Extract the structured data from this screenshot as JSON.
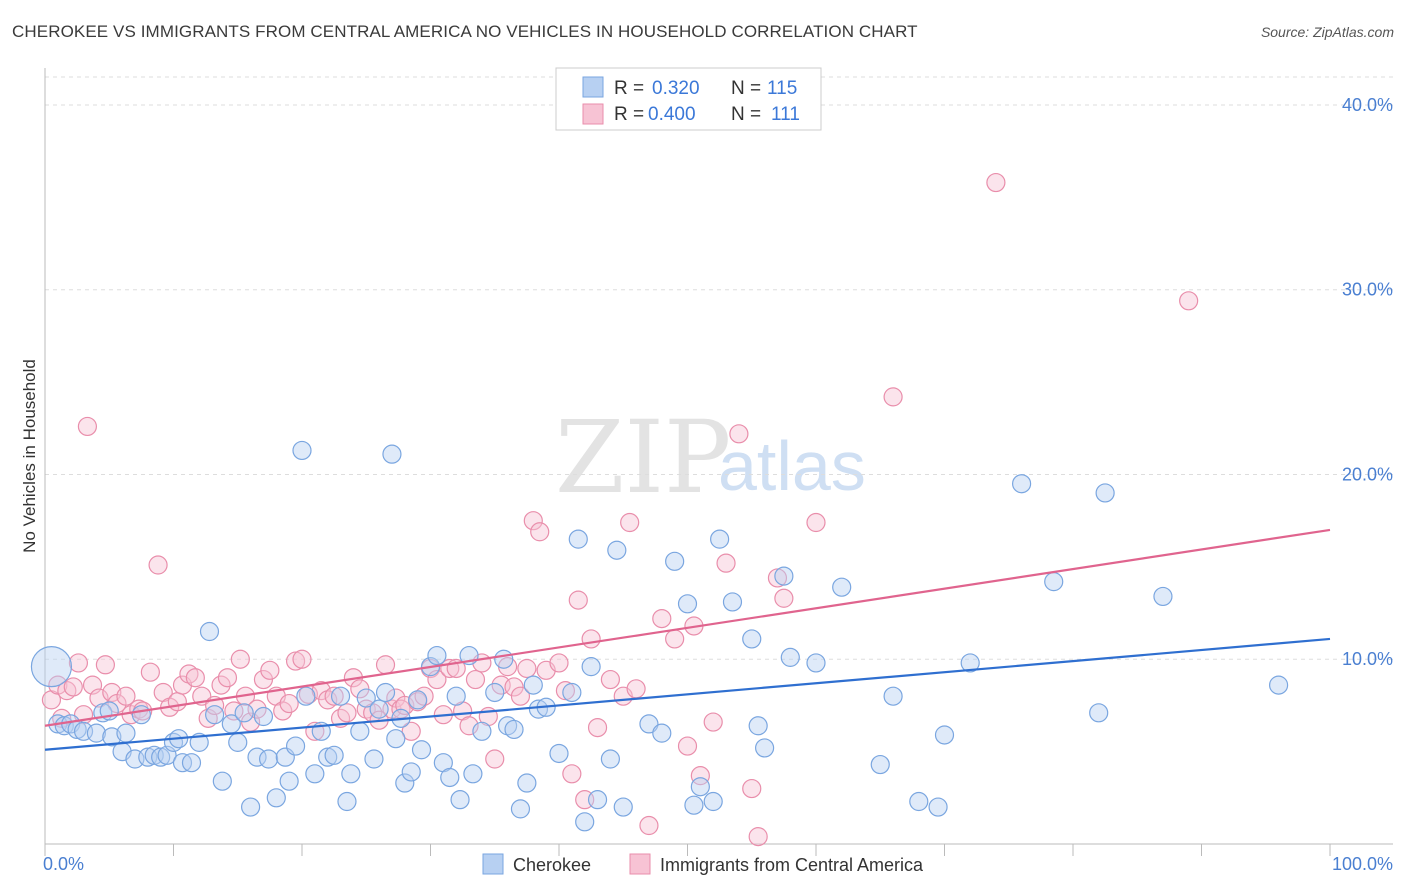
{
  "title": "CHEROKEE VS IMMIGRANTS FROM CENTRAL AMERICA NO VEHICLES IN HOUSEHOLD CORRELATION CHART",
  "source": "Source: ZipAtlas.com",
  "watermark": {
    "zip": "ZIP",
    "atlas": "atlas"
  },
  "colors": {
    "blue_fill": "#b7d0f2",
    "blue_stroke": "#7aa6e0",
    "blue_line": "#2f6fd0",
    "pink_fill": "#f7c3d4",
    "pink_stroke": "#e98eab",
    "pink_line": "#e0648e",
    "tick_text": "#4a7fd1",
    "grid": "#dddddd"
  },
  "legend": {
    "rows": [
      {
        "r_label": "R =",
        "r_value": "0.320",
        "n_label": "N =",
        "n_value": "115"
      },
      {
        "r_label": "R =",
        "r_value": "0.400",
        "n_label": "N =",
        "n_value": "111"
      }
    ]
  },
  "bottom_legend": [
    "Cherokee",
    "Immigrants from Central America"
  ],
  "chart_data": {
    "type": "scatter",
    "ylabel": "No Vehicles in Household",
    "xlabel": "",
    "xlim": [
      0,
      100
    ],
    "ylim": [
      0,
      42
    ],
    "x_tick_labels": [
      {
        "value": 0,
        "label": "0.0%"
      },
      {
        "value": 100,
        "label": "100.0%"
      }
    ],
    "y_tick_labels": [
      {
        "value": 10,
        "label": "10.0%"
      },
      {
        "value": 20,
        "label": "20.0%"
      },
      {
        "value": 30,
        "label": "30.0%"
      },
      {
        "value": 40,
        "label": "40.0%"
      }
    ],
    "series": [
      {
        "name": "Cherokee",
        "R": 0.32,
        "N": 115,
        "trend": {
          "x": [
            0,
            100
          ],
          "y": [
            5.1,
            11.1
          ]
        },
        "points": [
          [
            0.5,
            9.6
          ],
          [
            1,
            6.5
          ],
          [
            1.5,
            6.4
          ],
          [
            2,
            6.5
          ],
          [
            2.5,
            6.2
          ],
          [
            3,
            6.1
          ],
          [
            4,
            6.0
          ],
          [
            4.5,
            7.1
          ],
          [
            5,
            7.2
          ],
          [
            5.2,
            5.8
          ],
          [
            6,
            5.0
          ],
          [
            6.3,
            6.0
          ],
          [
            7,
            4.6
          ],
          [
            7.5,
            7.0
          ],
          [
            8,
            4.7
          ],
          [
            8.5,
            4.8
          ],
          [
            9,
            4.7
          ],
          [
            9.5,
            4.8
          ],
          [
            10,
            5.5
          ],
          [
            10.4,
            5.7
          ],
          [
            10.7,
            4.4
          ],
          [
            11.4,
            4.4
          ],
          [
            12,
            5.5
          ],
          [
            12.8,
            11.5
          ],
          [
            13.2,
            7.0
          ],
          [
            13.8,
            3.4
          ],
          [
            14.5,
            6.5
          ],
          [
            15,
            5.5
          ],
          [
            15.5,
            7.1
          ],
          [
            16,
            2.0
          ],
          [
            16.5,
            4.7
          ],
          [
            17,
            6.9
          ],
          [
            17.4,
            4.6
          ],
          [
            18,
            2.5
          ],
          [
            18.7,
            4.7
          ],
          [
            19,
            3.4
          ],
          [
            19.5,
            5.3
          ],
          [
            20,
            21.3
          ],
          [
            20.3,
            8.0
          ],
          [
            21,
            3.8
          ],
          [
            21.5,
            6.1
          ],
          [
            22,
            4.7
          ],
          [
            22.5,
            4.8
          ],
          [
            23,
            8.0
          ],
          [
            23.5,
            2.3
          ],
          [
            23.8,
            3.8
          ],
          [
            24.5,
            6.1
          ],
          [
            25,
            7.9
          ],
          [
            25.6,
            4.6
          ],
          [
            26,
            7.3
          ],
          [
            26.5,
            8.2
          ],
          [
            27,
            21.1
          ],
          [
            27.3,
            5.7
          ],
          [
            27.7,
            6.8
          ],
          [
            28,
            3.3
          ],
          [
            28.5,
            3.9
          ],
          [
            29,
            7.8
          ],
          [
            29.3,
            5.1
          ],
          [
            30,
            9.6
          ],
          [
            30.5,
            10.2
          ],
          [
            31,
            4.4
          ],
          [
            31.5,
            3.6
          ],
          [
            32,
            8.0
          ],
          [
            32.3,
            2.4
          ],
          [
            33,
            10.2
          ],
          [
            33.3,
            3.8
          ],
          [
            34,
            6.1
          ],
          [
            35,
            8.2
          ],
          [
            35.7,
            10.0
          ],
          [
            36,
            6.4
          ],
          [
            36.5,
            6.2
          ],
          [
            37,
            1.9
          ],
          [
            37.5,
            3.3
          ],
          [
            38,
            8.6
          ],
          [
            38.4,
            7.3
          ],
          [
            39,
            7.4
          ],
          [
            40,
            4.9
          ],
          [
            41,
            8.2
          ],
          [
            41.5,
            16.5
          ],
          [
            42,
            1.2
          ],
          [
            42.5,
            9.6
          ],
          [
            43,
            2.4
          ],
          [
            44,
            4.6
          ],
          [
            44.5,
            15.9
          ],
          [
            45,
            2.0
          ],
          [
            47,
            6.5
          ],
          [
            48,
            6.0
          ],
          [
            49,
            15.3
          ],
          [
            50,
            13.0
          ],
          [
            50.5,
            2.1
          ],
          [
            51,
            3.1
          ],
          [
            52,
            2.3
          ],
          [
            52.5,
            16.5
          ],
          [
            53.5,
            13.1
          ],
          [
            55,
            11.1
          ],
          [
            55.5,
            6.4
          ],
          [
            56,
            5.2
          ],
          [
            57.5,
            14.5
          ],
          [
            58,
            10.1
          ],
          [
            60,
            9.8
          ],
          [
            62,
            13.9
          ],
          [
            65,
            4.3
          ],
          [
            66,
            8.0
          ],
          [
            68,
            2.3
          ],
          [
            69.5,
            2.0
          ],
          [
            70,
            5.9
          ],
          [
            72,
            9.8
          ],
          [
            76,
            19.5
          ],
          [
            78.5,
            14.2
          ],
          [
            82,
            7.1
          ],
          [
            82.5,
            19.0
          ],
          [
            87,
            13.4
          ],
          [
            96,
            8.6
          ]
        ]
      },
      {
        "name": "Immigrants from Central America",
        "R": 0.4,
        "N": 111,
        "trend": {
          "x": [
            0,
            100
          ],
          "y": [
            6.4,
            17.0
          ]
        },
        "points": [
          [
            0.5,
            7.8
          ],
          [
            1,
            8.6
          ],
          [
            1.3,
            6.8
          ],
          [
            1.7,
            8.3
          ],
          [
            2.2,
            8.5
          ],
          [
            2.6,
            9.8
          ],
          [
            3,
            7.0
          ],
          [
            3.3,
            22.6
          ],
          [
            3.7,
            8.6
          ],
          [
            4.2,
            7.9
          ],
          [
            4.7,
            9.7
          ],
          [
            5.2,
            8.2
          ],
          [
            5.6,
            7.6
          ],
          [
            6.3,
            8.0
          ],
          [
            6.7,
            7.0
          ],
          [
            7.3,
            7.3
          ],
          [
            7.6,
            7.2
          ],
          [
            8.2,
            9.3
          ],
          [
            8.8,
            15.1
          ],
          [
            9.2,
            8.2
          ],
          [
            9.7,
            7.4
          ],
          [
            10.3,
            7.7
          ],
          [
            10.7,
            8.6
          ],
          [
            11.2,
            9.2
          ],
          [
            11.7,
            9.0
          ],
          [
            12.2,
            8.0
          ],
          [
            12.7,
            6.8
          ],
          [
            13.2,
            7.5
          ],
          [
            13.7,
            8.6
          ],
          [
            14.2,
            9.0
          ],
          [
            14.7,
            7.2
          ],
          [
            15.2,
            10.0
          ],
          [
            15.6,
            8.0
          ],
          [
            16,
            6.6
          ],
          [
            16.5,
            7.3
          ],
          [
            17,
            8.9
          ],
          [
            17.5,
            9.4
          ],
          [
            18,
            8.0
          ],
          [
            18.5,
            7.2
          ],
          [
            19,
            7.6
          ],
          [
            19.5,
            9.9
          ],
          [
            20,
            10.0
          ],
          [
            20.5,
            8.1
          ],
          [
            21,
            6.1
          ],
          [
            21.5,
            8.3
          ],
          [
            22,
            7.8
          ],
          [
            22.5,
            8.0
          ],
          [
            23,
            6.8
          ],
          [
            23.5,
            7.1
          ],
          [
            24,
            9.0
          ],
          [
            24.5,
            8.4
          ],
          [
            25,
            7.3
          ],
          [
            25.5,
            7.1
          ],
          [
            26,
            6.7
          ],
          [
            26.5,
            9.7
          ],
          [
            27,
            7.3
          ],
          [
            27.3,
            7.9
          ],
          [
            27.7,
            7.3
          ],
          [
            28,
            7.5
          ],
          [
            28.5,
            6.1
          ],
          [
            29,
            7.7
          ],
          [
            29.5,
            8.0
          ],
          [
            30,
            9.5
          ],
          [
            30.5,
            8.9
          ],
          [
            31,
            7.0
          ],
          [
            31.5,
            9.5
          ],
          [
            32,
            9.5
          ],
          [
            32.5,
            7.2
          ],
          [
            33,
            6.4
          ],
          [
            33.5,
            8.9
          ],
          [
            34,
            9.8
          ],
          [
            34.5,
            6.9
          ],
          [
            35,
            4.6
          ],
          [
            35.5,
            8.6
          ],
          [
            36,
            9.6
          ],
          [
            36.5,
            8.5
          ],
          [
            37,
            8.0
          ],
          [
            37.5,
            9.5
          ],
          [
            38,
            17.5
          ],
          [
            38.5,
            16.9
          ],
          [
            39,
            9.4
          ],
          [
            40,
            9.8
          ],
          [
            40.5,
            8.3
          ],
          [
            41,
            3.8
          ],
          [
            41.5,
            13.2
          ],
          [
            42,
            2.4
          ],
          [
            42.5,
            11.1
          ],
          [
            43,
            6.3
          ],
          [
            44,
            8.9
          ],
          [
            45,
            8.0
          ],
          [
            45.5,
            17.4
          ],
          [
            46,
            8.4
          ],
          [
            47,
            1.0
          ],
          [
            48,
            12.2
          ],
          [
            49,
            11.1
          ],
          [
            50,
            5.3
          ],
          [
            50.5,
            11.8
          ],
          [
            51,
            3.7
          ],
          [
            52,
            6.6
          ],
          [
            53,
            15.2
          ],
          [
            54,
            22.2
          ],
          [
            55,
            3.0
          ],
          [
            57,
            14.4
          ],
          [
            57.5,
            13.3
          ],
          [
            60,
            17.4
          ],
          [
            66,
            24.2
          ],
          [
            74,
            35.8
          ],
          [
            89,
            29.4
          ],
          [
            55.5,
            0.4
          ]
        ]
      }
    ]
  }
}
